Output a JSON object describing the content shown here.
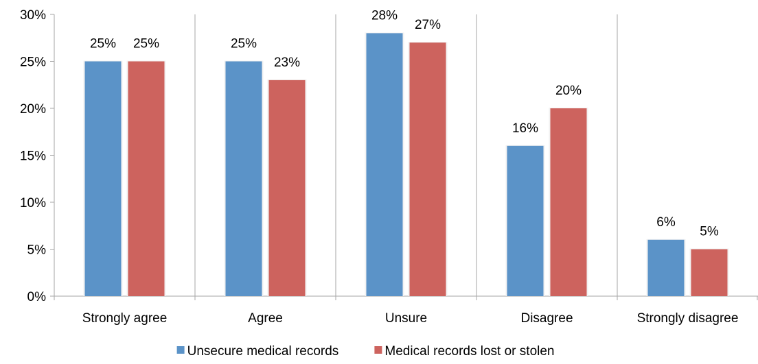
{
  "chart_data": {
    "type": "bar",
    "categories": [
      "Strongly agree",
      "Agree",
      "Unsure",
      "Disagree",
      "Strongly disagree"
    ],
    "series": [
      {
        "name": "Unsecure medical records",
        "values": [
          25,
          25,
          28,
          16,
          6
        ],
        "labels": [
          "25%",
          "25%",
          "28%",
          "16%",
          "6%"
        ],
        "color": "#5B93C8"
      },
      {
        "name": "Medical records lost or stolen",
        "values": [
          25,
          23,
          27,
          20,
          5
        ],
        "labels": [
          "25%",
          "23%",
          "27%",
          "20%",
          "5%"
        ],
        "color": "#CD635E"
      }
    ],
    "ylim": [
      0,
      30
    ],
    "yticks": [
      0,
      5,
      10,
      15,
      20,
      25,
      30
    ],
    "ytick_labels": [
      "0%",
      "5%",
      "10%",
      "15%",
      "20%",
      "25%",
      "30%"
    ],
    "legend_position": "bottom",
    "grid": false,
    "category_separators": true,
    "axis_color": "#A6A6A6"
  }
}
